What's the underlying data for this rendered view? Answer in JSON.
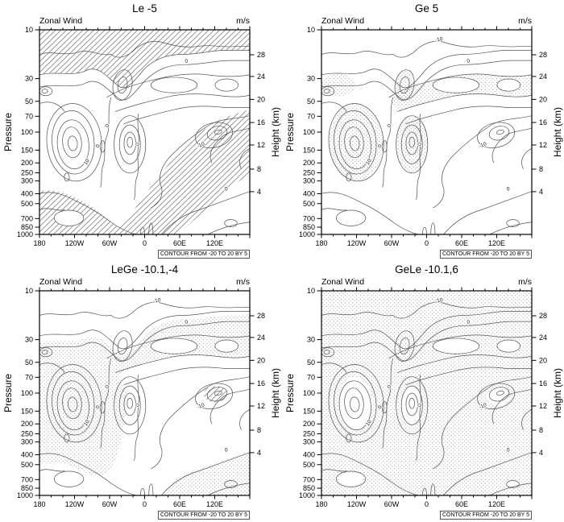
{
  "figure": {
    "panels": [
      {
        "title": "Le -5"
      },
      {
        "title": "Ge 5"
      },
      {
        "title": "LeGe -10.1,-4"
      },
      {
        "title": "GeLe -10.1,6"
      }
    ],
    "inner_left_label": "Zonal Wind",
    "inner_right_label": "m/s",
    "left_axis": {
      "label": "Pressure",
      "ticks": [
        "10",
        "30",
        "50",
        "70",
        "100",
        "150",
        "200",
        "250",
        "300",
        "400",
        "500",
        "700",
        "850",
        "1000"
      ]
    },
    "right_axis": {
      "label": "Height (km)",
      "ticks": [
        "28",
        "24",
        "20",
        "16",
        "12",
        "8",
        "4"
      ]
    },
    "x_axis": {
      "major_ticks": [
        "180",
        "120W",
        "60W",
        "0",
        "60E",
        "120E"
      ]
    },
    "contour_note": "CONTOUR FROM -20 TO 20 BY 5",
    "contour_line_labels": [
      {
        "text": "-10",
        "x": 56,
        "y": 5.5,
        "rot": -12,
        "panels": [
          1,
          2,
          3
        ]
      },
      {
        "text": "0",
        "x": 70,
        "y": 16,
        "rot": -10,
        "panels": [
          0,
          1,
          2,
          3
        ]
      },
      {
        "text": "0",
        "x": 33,
        "y": 47,
        "rot": -80,
        "panels": [
          0,
          1,
          2,
          3
        ]
      },
      {
        "text": "0",
        "x": 28.5,
        "y": 57,
        "rot": -75,
        "panels": [
          0,
          1,
          2,
          3
        ]
      },
      {
        "text": "10",
        "x": 23,
        "y": 65,
        "rot": -55,
        "panels": [
          0,
          1,
          2,
          3
        ]
      },
      {
        "text": "0",
        "x": 47.5,
        "y": 56,
        "rot": -85,
        "panels": [
          0,
          1,
          2,
          3
        ]
      },
      {
        "text": "-10",
        "x": 77,
        "y": 57,
        "rot": -25,
        "panels": [
          0,
          1,
          2,
          3
        ]
      },
      {
        "text": "0",
        "x": 89,
        "y": 78.5,
        "rot": -15,
        "panels": [
          0,
          1,
          2,
          3
        ]
      }
    ]
  },
  "chart_data": [
    {
      "type": "heatmap",
      "subtype": "contour-section",
      "title": "Le -5",
      "inner_title": "Zonal Wind",
      "units": "m/s",
      "x_tick_labels": [
        "180",
        "120W",
        "60W",
        "0",
        "60E",
        "120E"
      ],
      "x_meaning": "longitude, 180 west to 180 east",
      "y_left_label": "Pressure",
      "y_left_scale": "log",
      "y_left_ticks": [
        10,
        30,
        50,
        70,
        100,
        150,
        200,
        250,
        300,
        400,
        500,
        700,
        850,
        1000
      ],
      "y_right_label": "Height (km)",
      "y_right_ticks": [
        28,
        24,
        20,
        16,
        12,
        8,
        4
      ],
      "contour_from": -20,
      "contour_to": 20,
      "contour_by": 5,
      "contour_line_labels_visible": [
        -10,
        0,
        10
      ],
      "shading": "hatched where zonal wind <= -5 m/s (upper band, center-right diagonal trough, lower-left band)",
      "annotation": "CONTOUR FROM -20 TO 20 BY 5"
    },
    {
      "type": "heatmap",
      "subtype": "contour-section",
      "title": "Ge 5",
      "inner_title": "Zonal Wind",
      "units": "m/s",
      "x_tick_labels": [
        "180",
        "120W",
        "60W",
        "0",
        "60E",
        "120E"
      ],
      "x_meaning": "longitude, 180 west to 180 east",
      "y_left_label": "Pressure",
      "y_left_scale": "log",
      "y_left_ticks": [
        10,
        30,
        50,
        70,
        100,
        150,
        200,
        250,
        300,
        400,
        500,
        700,
        850,
        1000
      ],
      "y_right_label": "Height (km)",
      "y_right_ticks": [
        28,
        24,
        20,
        16,
        12,
        8,
        4
      ],
      "contour_from": -20,
      "contour_to": 20,
      "contour_by": 5,
      "contour_line_labels_visible": [
        -10,
        0,
        10
      ],
      "shading": "stippled where zonal wind >= 5 m/s (left jet core, mid blob, upper-right band, upper-left corner)",
      "annotation": "CONTOUR FROM -20 TO 20 BY 5"
    },
    {
      "type": "heatmap",
      "subtype": "contour-section",
      "title": "LeGe -10.1,-4",
      "inner_title": "Zonal Wind",
      "units": "m/s",
      "x_tick_labels": [
        "180",
        "120W",
        "60W",
        "0",
        "60E",
        "120E"
      ],
      "x_meaning": "longitude, 180 west to 180 east",
      "y_left_label": "Pressure",
      "y_left_scale": "log",
      "y_left_ticks": [
        10,
        30,
        50,
        70,
        100,
        150,
        200,
        250,
        300,
        400,
        500,
        700,
        850,
        1000
      ],
      "y_right_label": "Height (km)",
      "y_right_ticks": [
        28,
        24,
        20,
        16,
        12,
        8,
        4
      ],
      "contour_from": -20,
      "contour_to": 20,
      "contour_by": 5,
      "contour_line_labels_visible": [
        -10,
        0,
        10
      ],
      "shading": "hatched where zonal wind <= -10.1 m/s (small oval, center-right); stippled where zonal wind >= -4 m/s (most of section except top band and trough)",
      "annotation": "CONTOUR FROM -20 TO 20 BY 5"
    },
    {
      "type": "heatmap",
      "subtype": "contour-section",
      "title": "GeLe -10.1,6",
      "inner_title": "Zonal Wind",
      "units": "m/s",
      "x_tick_labels": [
        "180",
        "120W",
        "60W",
        "0",
        "60E",
        "120E"
      ],
      "x_meaning": "longitude, 180 west to 180 east",
      "y_left_label": "Pressure",
      "y_left_scale": "log",
      "y_left_ticks": [
        10,
        30,
        50,
        70,
        100,
        150,
        200,
        250,
        300,
        400,
        500,
        700,
        850,
        1000
      ],
      "y_right_label": "Height (km)",
      "y_right_ticks": [
        28,
        24,
        20,
        16,
        12,
        8,
        4
      ],
      "contour_from": -20,
      "contour_to": 20,
      "contour_by": 5,
      "contour_line_labels_visible": [
        -10,
        0,
        10
      ],
      "shading": "stippled where -10.1 <= zonal wind <= 6 m/s (nearly entire section, holes over jet cores and deep easterly oval)",
      "annotation": "CONTOUR FROM -20 TO 20 BY 5"
    }
  ]
}
